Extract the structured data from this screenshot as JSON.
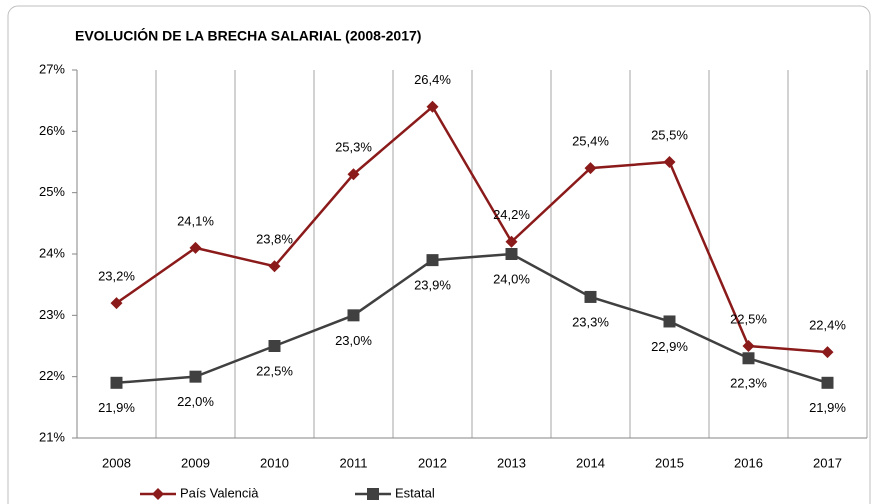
{
  "chart_data": {
    "type": "line",
    "title": "EVOLUCIÓN DE LA BRECHA SALARIAL (2008-2017)",
    "categories": [
      "2008",
      "2009",
      "2010",
      "2011",
      "2012",
      "2013",
      "2014",
      "2015",
      "2016",
      "2017"
    ],
    "series": [
      {
        "name": "País Valencià",
        "color": "#8b1a1a",
        "marker": "diamond",
        "values": [
          23.2,
          24.1,
          23.8,
          25.3,
          26.4,
          24.2,
          25.4,
          25.5,
          22.5,
          22.4
        ],
        "value_labels": [
          "23,2%",
          "24,1%",
          "23,8%",
          "25,3%",
          "26,4%",
          "24,2%",
          "25,4%",
          "25,5%",
          "22,5%",
          "22,4%"
        ],
        "label_position": "above"
      },
      {
        "name": "Estatal",
        "color": "#404040",
        "marker": "square",
        "values": [
          21.9,
          22.0,
          22.5,
          23.0,
          23.9,
          24.0,
          23.3,
          22.9,
          22.3,
          21.9
        ],
        "value_labels": [
          "21,9%",
          "22,0%",
          "22,5%",
          "23,0%",
          "23,9%",
          "24,0%",
          "23,3%",
          "22,9%",
          "22,3%",
          "21,9%"
        ],
        "label_position": "below"
      }
    ],
    "ylim": [
      21,
      27
    ],
    "yticks": [
      {
        "value": 21,
        "label": "21%"
      },
      {
        "value": 22,
        "label": "22%"
      },
      {
        "value": 23,
        "label": "23%"
      },
      {
        "value": 24,
        "label": "24%"
      },
      {
        "value": 25,
        "label": "25%"
      },
      {
        "value": 26,
        "label": "26%"
      },
      {
        "value": 27,
        "label": "27%"
      }
    ],
    "grid": "vertical",
    "legend": "bottom"
  }
}
